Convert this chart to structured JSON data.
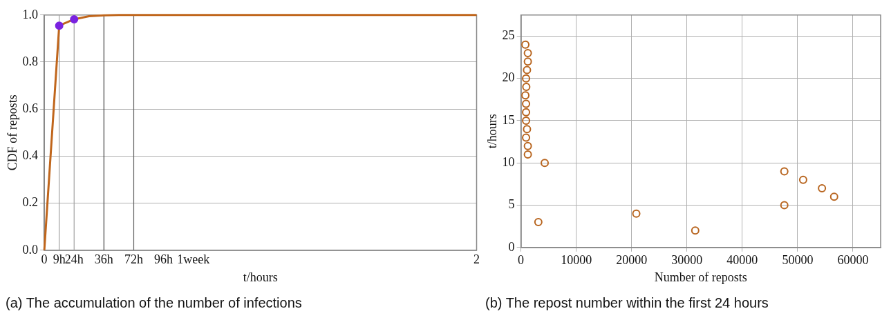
{
  "chart_data": [
    {
      "type": "line",
      "title": "(a) The accumulation of the number of infections",
      "xlabel": "t/hours",
      "ylabel": "CDF of reposts",
      "categories": [
        "0",
        "9h",
        "24h",
        null,
        "36h",
        null,
        "72h",
        null,
        "96h",
        null,
        "1week",
        null,
        null,
        null,
        null,
        null,
        null,
        null,
        null,
        null,
        null,
        null,
        null,
        null,
        null,
        null,
        null,
        null,
        null,
        "2"
      ],
      "ylim": [
        0,
        1
      ],
      "yticks": [
        {
          "value": 0,
          "label": "0.0"
        },
        0.2,
        0.4,
        0.6,
        0.8,
        {
          "value": 1,
          "label": "1.0"
        }
      ],
      "grid": "y",
      "series": [
        {
          "type": "line",
          "color": "#c0661c",
          "marker": "none",
          "values": [
            0,
            0.955,
            0.982,
            0.995,
            0.999,
            1,
            1,
            1,
            1,
            1,
            1,
            1,
            1,
            1,
            1,
            1,
            1,
            1,
            1,
            1,
            1,
            1,
            1,
            1,
            1,
            1,
            1,
            1,
            1,
            1
          ]
        },
        {
          "type": "scatter",
          "color": "#7a22e0",
          "marker": "circle",
          "x": [
            "9h",
            "24h"
          ],
          "values": [
            0.955,
            0.982
          ]
        }
      ],
      "ref_lines": [
        {
          "axis": "x",
          "value": "9h",
          "color": "#a0a0a0"
        },
        {
          "axis": "x",
          "value": "24h",
          "color": "#a0a0a0"
        },
        {
          "axis": "x",
          "value": "36h",
          "color": "#404040"
        },
        {
          "axis": "x",
          "value": "72h",
          "color": "#606060"
        }
      ]
    },
    {
      "type": "scatter",
      "title": "(b) The repost number within the first 24 hours",
      "xlabel": "Number of reposts",
      "ylabel": "t/hours",
      "xlim": [
        0,
        65000
      ],
      "xticks": [
        0,
        10000,
        20000,
        30000,
        40000,
        50000,
        60000
      ],
      "ylim": [
        0,
        27.5
      ],
      "yticks": [
        0,
        5,
        10,
        15,
        20,
        25
      ],
      "grid": true,
      "marker": "circle",
      "color": "#b8651f",
      "x": [
        810,
        1250,
        1250,
        1100,
        930,
        970,
        810,
        930,
        930,
        930,
        1100,
        930,
        1250,
        1250,
        4300,
        47600,
        51000,
        54400,
        56600,
        47600,
        20850,
        3150,
        31500
      ],
      "values": [
        24,
        23,
        22,
        21,
        20,
        19,
        18,
        17,
        16,
        15,
        14,
        13,
        12,
        11,
        10,
        9,
        8,
        7,
        6,
        5,
        4,
        3,
        2
      ]
    }
  ]
}
